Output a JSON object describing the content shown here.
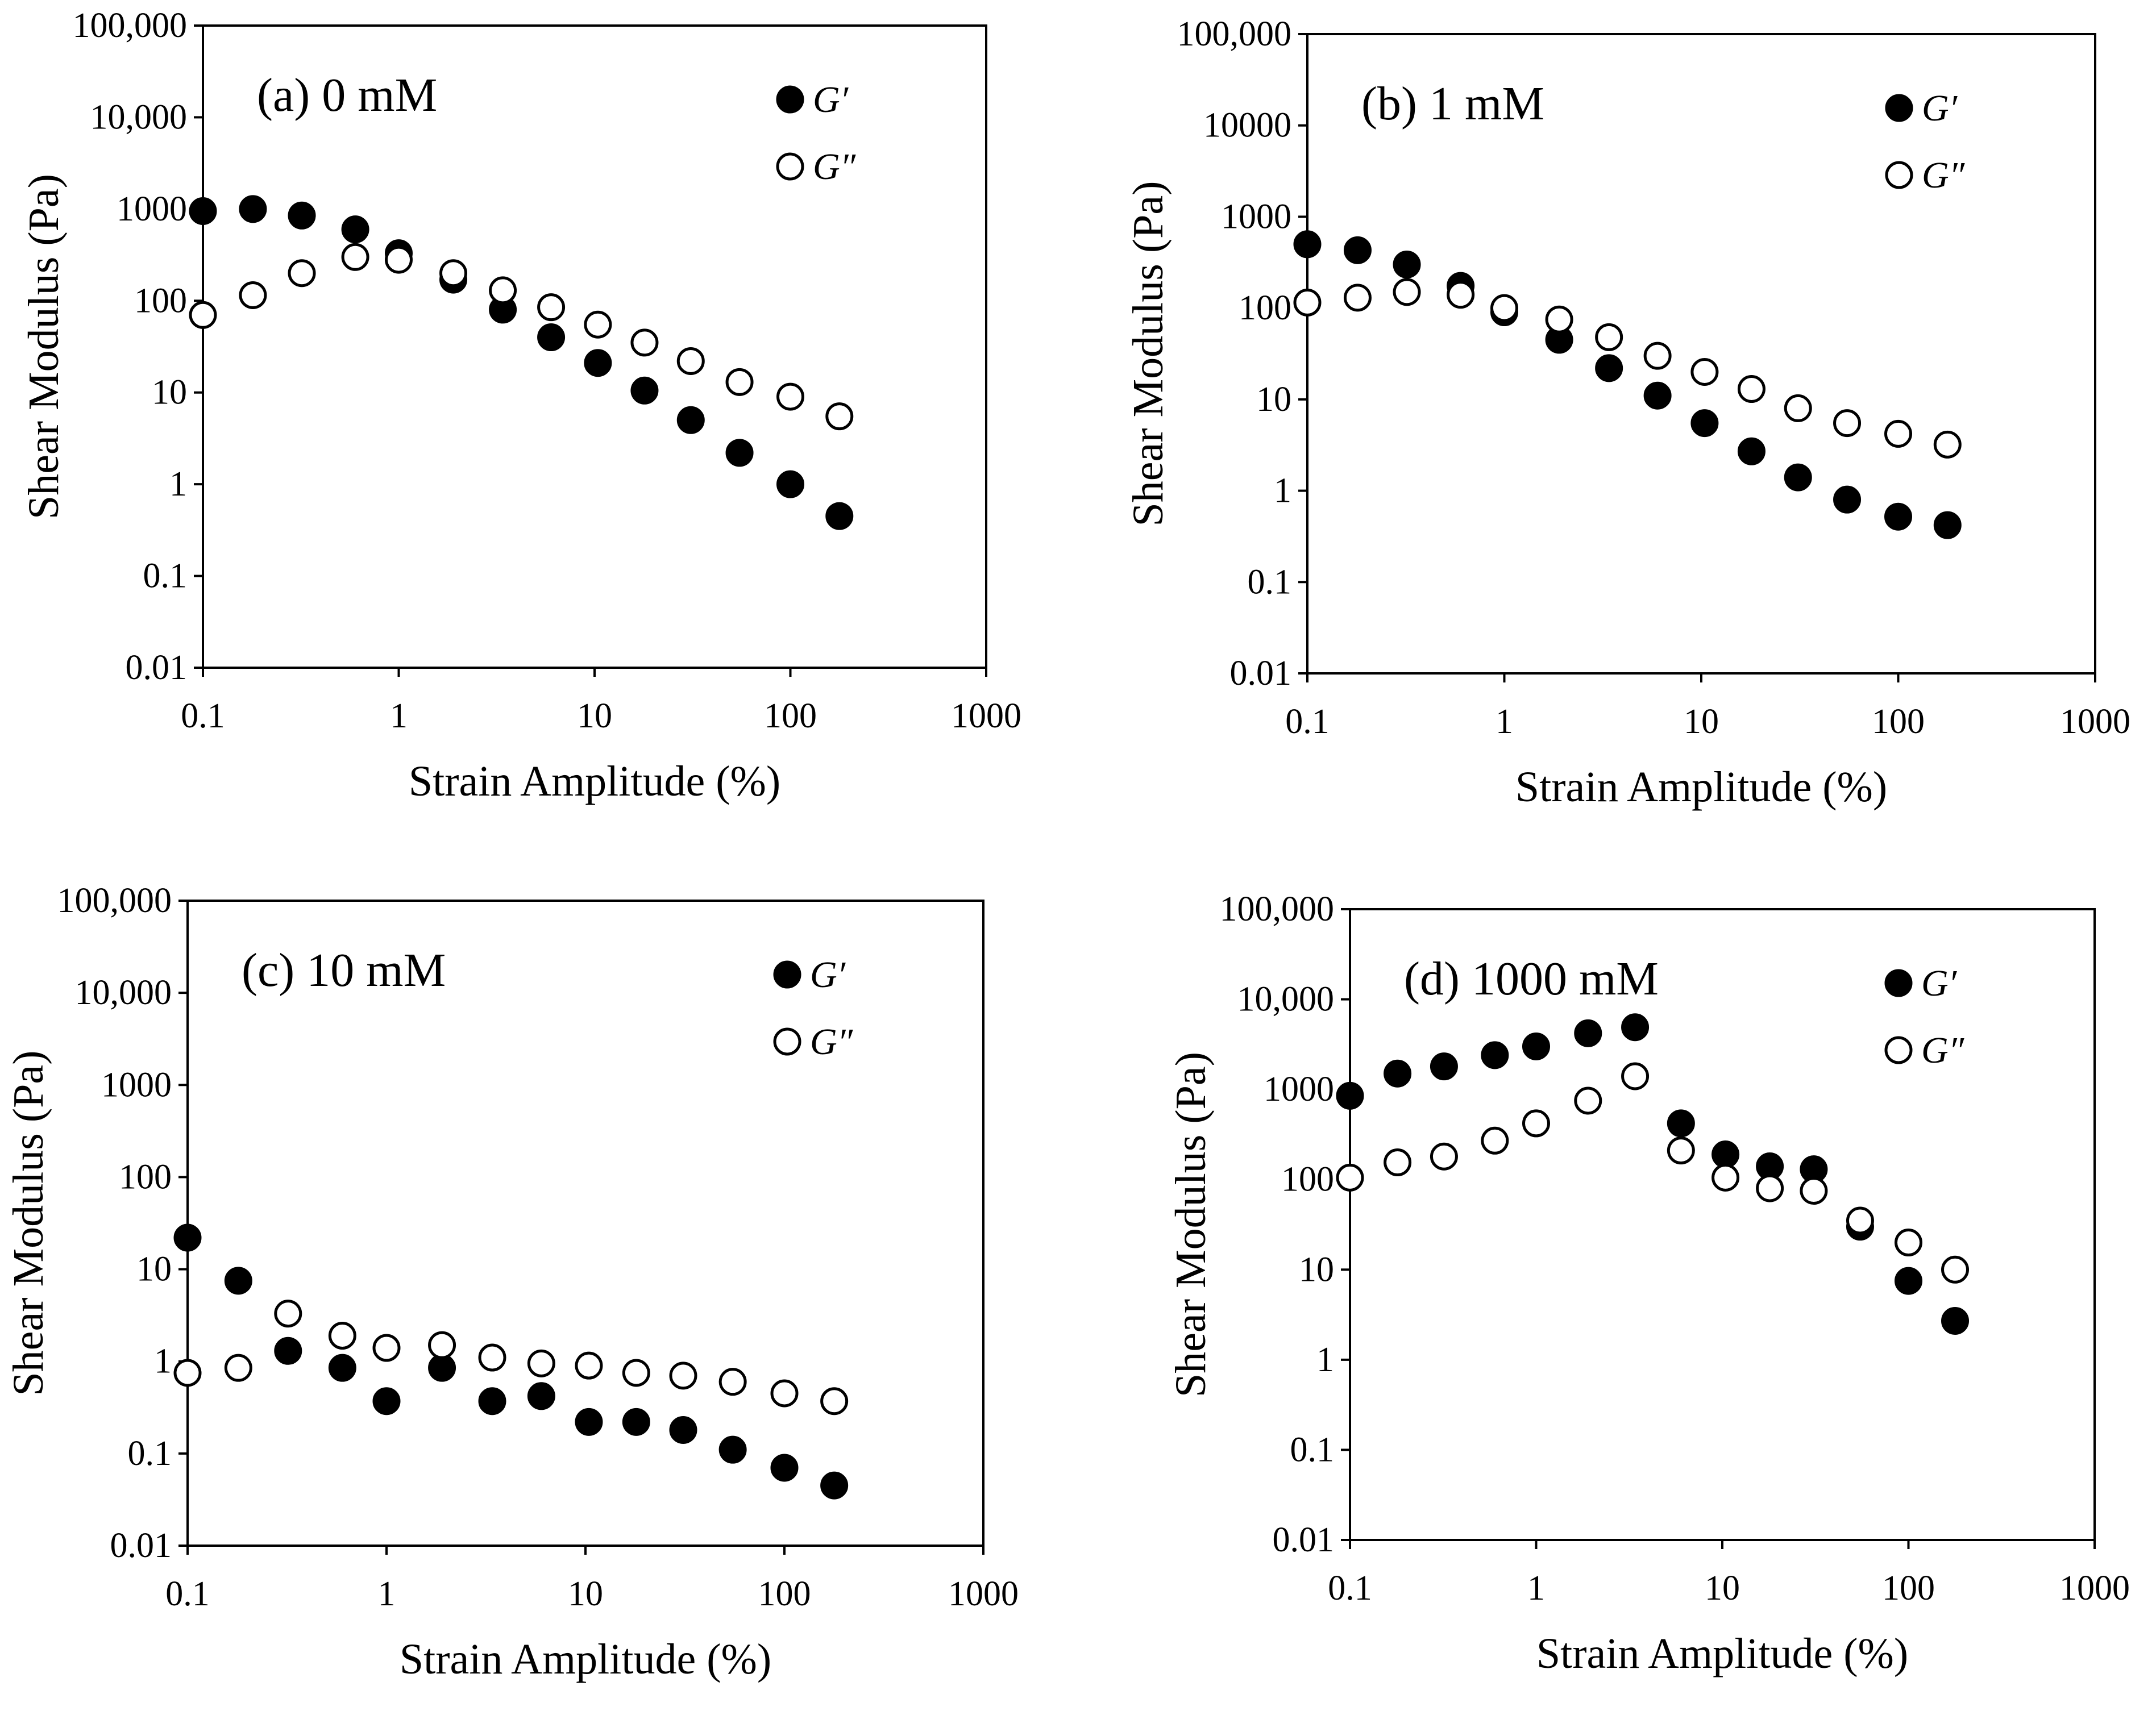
{
  "figure": {
    "y_tick_labels": [
      "0.01",
      "0.1",
      "1",
      "10",
      "100",
      "1000",
      "10,000",
      "100,000"
    ],
    "x_tick_labels": [
      "0.1",
      "1",
      "10",
      "100",
      "1000"
    ],
    "marker_colors": {
      "filled": "#000000",
      "open_stroke": "#000000",
      "open_fill": "#ffffff"
    }
  },
  "chart_data": [
    {
      "type": "scatter",
      "title": "(a) 0 mM",
      "xlabel": "Strain Amplitude (%)",
      "ylabel": "Shear Modulus (Pa)",
      "x_scale": "log",
      "y_scale": "log",
      "xlim": [
        0.1,
        1000
      ],
      "ylim": [
        0.01,
        100000
      ],
      "y_tick_labels": [
        "0.01",
        "0.1",
        "1",
        "10",
        "100",
        "1000",
        "10,000",
        "100,000"
      ],
      "legend_position": "top-right",
      "series": [
        {
          "name": "G′",
          "marker": "filled",
          "x": [
            0.1,
            0.18,
            0.32,
            0.6,
            1.0,
            1.9,
            3.4,
            6.0,
            10.4,
            18,
            31,
            55,
            100,
            178
          ],
          "y": [
            950,
            1000,
            850,
            600,
            330,
            170,
            80,
            40,
            21,
            10.5,
            5,
            2.2,
            1.0,
            0.45
          ]
        },
        {
          "name": "G″",
          "marker": "open",
          "x": [
            0.1,
            0.18,
            0.32,
            0.6,
            1.0,
            1.9,
            3.4,
            6.0,
            10.4,
            18,
            31,
            55,
            100,
            178
          ],
          "y": [
            70,
            115,
            200,
            300,
            280,
            200,
            130,
            85,
            55,
            35,
            22,
            13,
            9,
            5.5
          ]
        }
      ]
    },
    {
      "type": "scatter",
      "title": "(b) 1 mM",
      "xlabel": "Strain Amplitude (%)",
      "ylabel": "Shear Modulus (Pa)",
      "x_scale": "log",
      "y_scale": "log",
      "xlim": [
        0.1,
        1000
      ],
      "ylim": [
        0.01,
        100000
      ],
      "y_tick_labels": [
        "0.01",
        "0.1",
        "1",
        "10",
        "100",
        "1000",
        "10000",
        "100,000"
      ],
      "legend_position": "top-right",
      "series": [
        {
          "name": "G′",
          "marker": "filled",
          "x": [
            0.1,
            0.18,
            0.32,
            0.6,
            1.0,
            1.9,
            3.4,
            6.0,
            10.4,
            18,
            31,
            55,
            100,
            178
          ],
          "y": [
            500,
            430,
            300,
            175,
            90,
            45,
            22,
            11,
            5.5,
            2.7,
            1.4,
            0.8,
            0.52,
            0.42
          ]
        },
        {
          "name": "G″",
          "marker": "open",
          "x": [
            0.1,
            0.18,
            0.32,
            0.6,
            1.0,
            1.9,
            3.4,
            6.0,
            10.4,
            18,
            31,
            55,
            100,
            178
          ],
          "y": [
            115,
            130,
            150,
            140,
            100,
            75,
            48,
            30,
            20,
            13,
            8,
            5.5,
            4.2,
            3.2
          ]
        }
      ]
    },
    {
      "type": "scatter",
      "title": "(c) 10 mM",
      "xlabel": "Strain Amplitude (%)",
      "ylabel": "Shear Modulus (Pa)",
      "x_scale": "log",
      "y_scale": "log",
      "xlim": [
        0.1,
        1000
      ],
      "ylim": [
        0.01,
        100000
      ],
      "y_tick_labels": [
        "0.01",
        "0.1",
        "1",
        "10",
        "100",
        "1000",
        "10,000",
        "100,000"
      ],
      "legend_position": "top-right",
      "series": [
        {
          "name": "G′",
          "marker": "filled",
          "x": [
            0.1,
            0.18,
            0.32,
            0.6,
            1.0,
            1.9,
            3.4,
            6.0,
            10.4,
            18,
            31,
            55,
            100,
            178
          ],
          "y": [
            22,
            7.5,
            1.3,
            0.85,
            0.37,
            0.85,
            0.37,
            0.42,
            0.22,
            0.22,
            0.18,
            0.11,
            0.07,
            0.045
          ]
        },
        {
          "name": "G″",
          "marker": "open",
          "x": [
            0.1,
            0.18,
            0.32,
            0.6,
            1.0,
            1.9,
            3.4,
            6.0,
            10.4,
            18,
            31,
            55,
            100,
            178
          ],
          "y": [
            0.75,
            0.85,
            3.3,
            1.9,
            1.4,
            1.5,
            1.1,
            0.95,
            0.9,
            0.75,
            0.7,
            0.6,
            0.45,
            0.37
          ]
        }
      ]
    },
    {
      "type": "scatter",
      "title": "(d) 1000 mM",
      "xlabel": "Strain Amplitude (%)",
      "ylabel": "Shear Modulus (Pa)",
      "x_scale": "log",
      "y_scale": "log",
      "xlim": [
        0.1,
        1000
      ],
      "ylim": [
        0.01,
        100000
      ],
      "y_tick_labels": [
        "0.01",
        "0.1",
        "1",
        "10",
        "100",
        "1000",
        "10,000",
        "100,000"
      ],
      "legend_position": "top-right",
      "series": [
        {
          "name": "G′",
          "marker": "filled",
          "x": [
            0.1,
            0.18,
            0.32,
            0.6,
            1.0,
            1.9,
            3.4,
            6.0,
            10.4,
            18,
            31,
            55,
            100,
            178
          ],
          "y": [
            850,
            1500,
            1800,
            2400,
            3000,
            4200,
            4900,
            420,
            190,
            140,
            130,
            30,
            7.5,
            2.7
          ]
        },
        {
          "name": "G″",
          "marker": "open",
          "x": [
            0.1,
            0.18,
            0.32,
            0.6,
            1.0,
            1.9,
            3.4,
            6.0,
            10.4,
            18,
            31,
            55,
            100,
            178
          ],
          "y": [
            105,
            155,
            180,
            270,
            420,
            750,
            1400,
            210,
            105,
            80,
            75,
            35,
            20,
            10
          ]
        }
      ]
    }
  ]
}
